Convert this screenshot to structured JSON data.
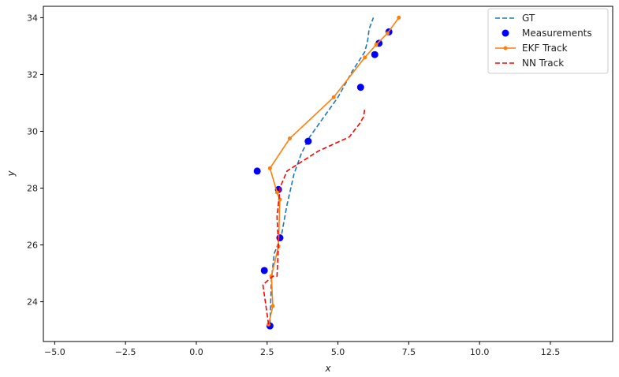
{
  "chart_data": {
    "type": "line",
    "xlabel": "x",
    "ylabel": "y",
    "xlim": [
      -5.4,
      14.7
    ],
    "ylim": [
      22.6,
      34.4
    ],
    "xticks": [
      -5.0,
      -2.5,
      0.0,
      2.5,
      5.0,
      7.5,
      10.0,
      12.5
    ],
    "xtick_labels": [
      "−5.0",
      "−2.5",
      "0.0",
      "2.5",
      "5.0",
      "7.5",
      "10.0",
      "12.5"
    ],
    "yticks": [
      24,
      26,
      28,
      30,
      32,
      34
    ],
    "ytick_labels": [
      "24",
      "26",
      "28",
      "30",
      "32",
      "34"
    ],
    "grid": false,
    "legend_position": "top-right",
    "series": [
      {
        "name": "GT",
        "kind": "line",
        "style": "dashed",
        "color": "#1f77b4",
        "x": [
          2.6,
          2.65,
          2.75,
          3.0,
          3.2,
          3.45,
          3.7,
          4.0,
          4.5,
          5.0,
          5.5,
          5.95,
          6.05,
          6.1,
          6.25
        ],
        "y": [
          23.2,
          24.8,
          25.7,
          26.3,
          27.4,
          28.5,
          29.2,
          29.8,
          30.5,
          31.2,
          32.1,
          32.8,
          33.2,
          33.6,
          34.0
        ]
      },
      {
        "name": "Measurements",
        "kind": "scatter",
        "color": "#0000ff",
        "x": [
          2.6,
          2.4,
          2.95,
          2.9,
          2.15,
          3.95,
          5.8,
          6.3,
          6.45,
          6.8
        ],
        "y": [
          23.15,
          25.1,
          26.25,
          27.95,
          28.6,
          29.65,
          31.55,
          32.7,
          33.1,
          33.5
        ]
      },
      {
        "name": "EKF Track",
        "kind": "line",
        "style": "solid",
        "marker": "dot",
        "color": "#ff7f0e",
        "x": [
          2.55,
          2.7,
          2.65,
          2.9,
          2.95,
          2.85,
          2.6,
          3.3,
          4.85,
          5.95,
          6.35,
          6.75,
          7.15
        ],
        "y": [
          23.2,
          23.85,
          24.9,
          25.95,
          27.6,
          27.85,
          28.7,
          29.75,
          31.2,
          32.6,
          33.05,
          33.45,
          34.0
        ]
      },
      {
        "name": "NN Track",
        "kind": "line",
        "style": "dashed",
        "color": "#ff0000",
        "x": [
          2.55,
          2.45,
          2.35,
          2.7,
          2.85,
          2.9,
          2.85,
          2.95,
          2.95,
          3.2,
          4.3,
          5.4,
          5.75,
          5.9,
          5.95
        ],
        "y": [
          23.2,
          23.9,
          24.6,
          24.9,
          24.9,
          26.0,
          27.0,
          27.9,
          28.0,
          28.6,
          29.3,
          29.8,
          30.25,
          30.5,
          30.8
        ]
      }
    ]
  }
}
